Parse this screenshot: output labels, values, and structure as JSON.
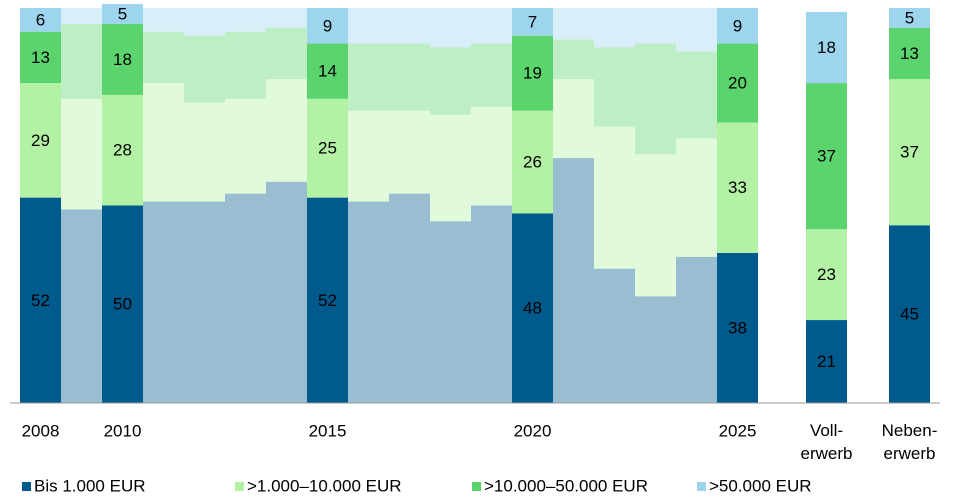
{
  "chart_data": {
    "type": "stacked_bar",
    "categories": [
      "2008",
      null,
      "2010",
      null,
      null,
      null,
      null,
      "2015",
      null,
      null,
      null,
      null,
      "2020",
      null,
      null,
      null,
      null,
      "2025",
      "Voll-\nerwerb",
      "Neben-\nerwerb"
    ],
    "highlight": [
      true,
      false,
      true,
      false,
      false,
      false,
      false,
      true,
      false,
      false,
      false,
      false,
      true,
      false,
      false,
      false,
      false,
      true,
      true,
      true
    ],
    "ylim": [
      0,
      100
    ],
    "legend": "bottom",
    "series": [
      {
        "name": "Bis 1.000 EUR",
        "color": "#005a8c",
        "values": [
          52,
          49,
          50,
          51,
          51,
          53,
          56,
          52,
          51,
          53,
          46,
          50,
          48,
          62,
          34,
          27,
          37,
          38,
          21,
          45
        ]
      },
      {
        "name": ">1.000–10.000 EUR",
        "color": "#b3f2a5",
        "values": [
          29,
          28,
          28,
          30,
          25,
          24,
          26,
          25,
          23,
          21,
          27,
          25,
          26,
          20,
          36,
          36,
          30,
          33,
          23,
          37
        ]
      },
      {
        "name": ">10.000–50.000 EUR",
        "color": "#5bd46e",
        "values": [
          13,
          19,
          18,
          13,
          17,
          17,
          13,
          14,
          17,
          17,
          17,
          16,
          19,
          10,
          20,
          28,
          22,
          20,
          37,
          13
        ]
      },
      {
        "name": ">50.000 EUR",
        "color": "#9dd5ee",
        "values": [
          6,
          4,
          5,
          6,
          7,
          6,
          5,
          9,
          9,
          9,
          10,
          9,
          7,
          8,
          10,
          9,
          11,
          9,
          18,
          5
        ]
      }
    ]
  }
}
